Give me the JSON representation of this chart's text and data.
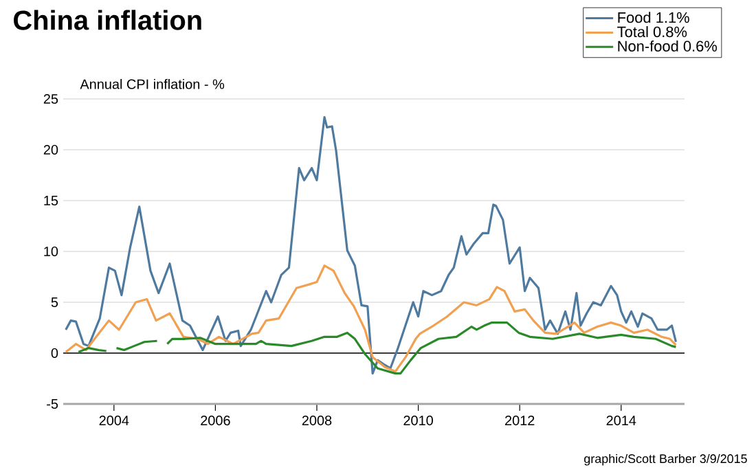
{
  "chart_data": {
    "type": "line",
    "title": "China inflation",
    "ylabel": "Annual CPI inflation - %",
    "annotations": [
      "graphic/Scott Barber 3/9/2015"
    ],
    "xlim": [
      2003,
      2015.25
    ],
    "xticks": [
      2004,
      2006,
      2008,
      2010,
      2012,
      2014
    ],
    "ylim": [
      -5,
      25
    ],
    "yticks": [
      -5,
      0,
      5,
      10,
      15,
      20,
      25
    ],
    "grid": "y",
    "legend": "top right",
    "ref_lines": [
      {
        "axis": "y",
        "value": 0,
        "color": "#000000"
      }
    ],
    "series": [
      {
        "name": "Food 1.1%",
        "color": "#4f7aa0",
        "x": [
          2003.05,
          2003.15,
          2003.25,
          2003.4,
          2003.5,
          2003.72,
          2003.9,
          2004.02,
          2004.15,
          2004.32,
          2004.5,
          2004.72,
          2004.88,
          2005.1,
          2005.35,
          2005.5,
          2005.75,
          2006.05,
          2006.2,
          2006.3,
          2006.45,
          2006.5,
          2006.7,
          2007.0,
          2007.1,
          2007.3,
          2007.45,
          2007.65,
          2007.75,
          2007.9,
          2008.0,
          2008.15,
          2008.2,
          2008.3,
          2008.38,
          2008.6,
          2008.75,
          2008.88,
          2009.0,
          2009.1,
          2009.2,
          2009.32,
          2009.45,
          2009.6,
          2009.9,
          2010.0,
          2010.1,
          2010.27,
          2010.45,
          2010.6,
          2010.7,
          2010.85,
          2010.95,
          2011.1,
          2011.27,
          2011.38,
          2011.48,
          2011.53,
          2011.67,
          2011.8,
          2012.0,
          2012.1,
          2012.2,
          2012.37,
          2012.5,
          2012.6,
          2012.75,
          2012.9,
          2013.0,
          2013.12,
          2013.2,
          2013.32,
          2013.45,
          2013.6,
          2013.8,
          2013.92,
          2014.0,
          2014.1,
          2014.2,
          2014.33,
          2014.42,
          2014.6,
          2014.72,
          2014.9,
          2015.0,
          2015.08
        ],
        "values": [
          2.3,
          3.2,
          3.1,
          0.9,
          0.7,
          3.4,
          8.4,
          8.1,
          5.7,
          10.4,
          14.4,
          8.1,
          5.9,
          8.8,
          3.2,
          2.7,
          0.3,
          3.6,
          1.2,
          2.0,
          2.2,
          0.7,
          2.3,
          6.1,
          5.0,
          7.7,
          8.4,
          18.2,
          17.0,
          18.2,
          17.0,
          23.2,
          22.2,
          22.3,
          19.9,
          10.1,
          8.6,
          4.7,
          4.6,
          -2.0,
          -0.7,
          -1.1,
          -1.5,
          0.5,
          5.0,
          3.6,
          6.1,
          5.7,
          6.1,
          7.7,
          8.4,
          11.5,
          9.7,
          10.8,
          11.8,
          11.8,
          14.6,
          14.5,
          13.1,
          8.8,
          10.4,
          6.1,
          7.4,
          6.4,
          2.3,
          3.2,
          1.9,
          4.1,
          2.3,
          5.9,
          2.7,
          3.9,
          5.0,
          4.7,
          6.6,
          5.7,
          4.1,
          3.0,
          4.1,
          2.6,
          3.9,
          3.4,
          2.3,
          2.3,
          2.7,
          1.1
        ]
      },
      {
        "name": "Total 0.8%",
        "color": "#f0a050",
        "x": [
          2003.05,
          2003.25,
          2003.45,
          2003.65,
          2003.9,
          2004.1,
          2004.43,
          2004.65,
          2004.83,
          2005.1,
          2005.37,
          2005.65,
          2005.85,
          2006.07,
          2006.35,
          2006.72,
          2006.85,
          2007.0,
          2007.25,
          2007.6,
          2007.88,
          2008.0,
          2008.15,
          2008.33,
          2008.55,
          2008.73,
          2008.95,
          2009.1,
          2009.35,
          2009.55,
          2009.75,
          2009.95,
          2010.03,
          2010.3,
          2010.57,
          2010.9,
          2011.15,
          2011.4,
          2011.55,
          2011.7,
          2011.9,
          2012.1,
          2012.27,
          2012.5,
          2012.72,
          2012.95,
          2013.08,
          2013.27,
          2013.53,
          2013.8,
          2014.0,
          2014.25,
          2014.52,
          2014.8,
          2014.96,
          2015.08
        ],
        "values": [
          0.1,
          0.9,
          0.3,
          1.6,
          3.2,
          2.3,
          5.0,
          5.3,
          3.2,
          3.9,
          1.6,
          1.4,
          0.9,
          1.6,
          0.9,
          1.9,
          2.0,
          3.2,
          3.4,
          6.4,
          6.8,
          7.0,
          8.6,
          8.1,
          5.9,
          4.6,
          2.3,
          -0.4,
          -1.4,
          -1.8,
          -0.4,
          1.4,
          1.9,
          2.7,
          3.6,
          5.0,
          4.7,
          5.3,
          6.5,
          6.1,
          4.1,
          4.3,
          3.2,
          2.0,
          1.9,
          2.6,
          3.0,
          2.0,
          2.6,
          3.0,
          2.7,
          2.0,
          2.3,
          1.6,
          1.4,
          0.8
        ]
      },
      {
        "name": "Non-food 0.6%",
        "color": "#2a8a2a",
        "x": [
          2003.3,
          2003.5,
          2003.7,
          2003.85,
          2003.95,
          2004.05,
          2004.2,
          2004.4,
          2004.6,
          2004.85,
          2004.95,
          2005.05,
          2005.15,
          2005.4,
          2005.7,
          2006.0,
          2006.4,
          2006.8,
          2006.9,
          2007.0,
          2007.5,
          2007.9,
          2008.15,
          2008.4,
          2008.6,
          2008.75,
          2008.95,
          2009.2,
          2009.55,
          2009.65,
          2009.85,
          2010.05,
          2010.4,
          2010.75,
          2011.05,
          2011.15,
          2011.3,
          2011.45,
          2011.75,
          2011.98,
          2012.2,
          2012.65,
          2013.18,
          2013.53,
          2014.0,
          2014.25,
          2014.68,
          2015.0,
          2015.08
        ],
        "values": [
          0.1,
          0.5,
          0.3,
          0.2,
          null,
          0.5,
          0.3,
          0.7,
          1.1,
          1.2,
          null,
          0.9,
          1.4,
          1.4,
          1.5,
          0.9,
          0.9,
          0.9,
          1.2,
          0.9,
          0.7,
          1.2,
          1.6,
          1.6,
          2.0,
          1.4,
          -0.1,
          -1.5,
          -2.0,
          -2.0,
          -0.7,
          0.5,
          1.4,
          1.6,
          2.6,
          2.3,
          2.7,
          3.0,
          3.0,
          2.0,
          1.6,
          1.4,
          1.9,
          1.5,
          1.8,
          1.6,
          1.4,
          0.7,
          0.6
        ]
      }
    ]
  }
}
